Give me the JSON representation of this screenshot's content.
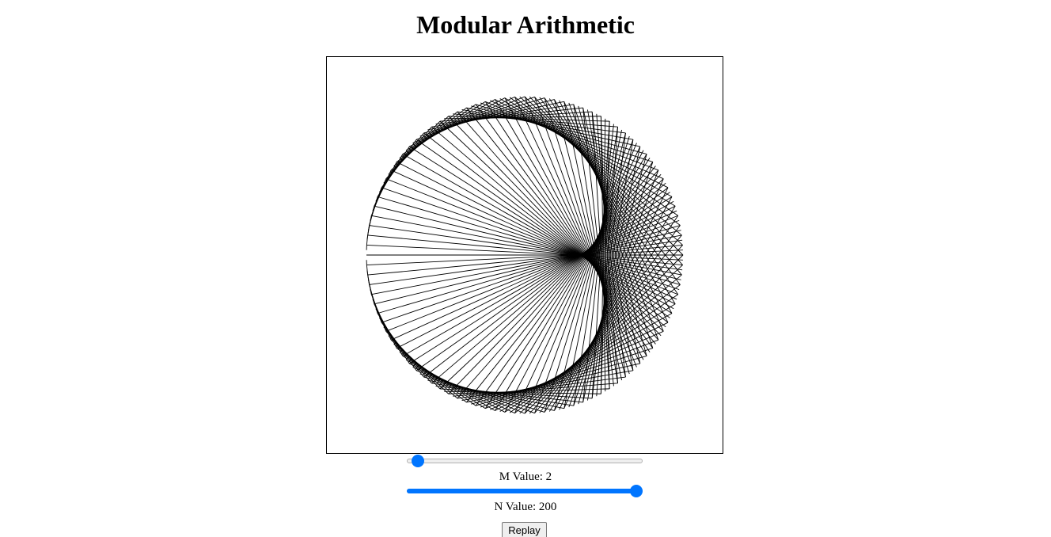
{
  "title": "Modular Arithmetic",
  "visualization": {
    "modulus_points": 200,
    "multiplier": 2,
    "stroke_color": "#000000",
    "background_color": "#ffffff"
  },
  "controls": {
    "m_slider": {
      "value": 2,
      "fraction": 0.02
    },
    "m_label_text": "M Value: 2",
    "n_slider": {
      "value": 200,
      "fraction": 1.0
    },
    "n_label_text": "N Value: 200",
    "replay_label": "Replay",
    "accent_color": "#0075ff"
  }
}
